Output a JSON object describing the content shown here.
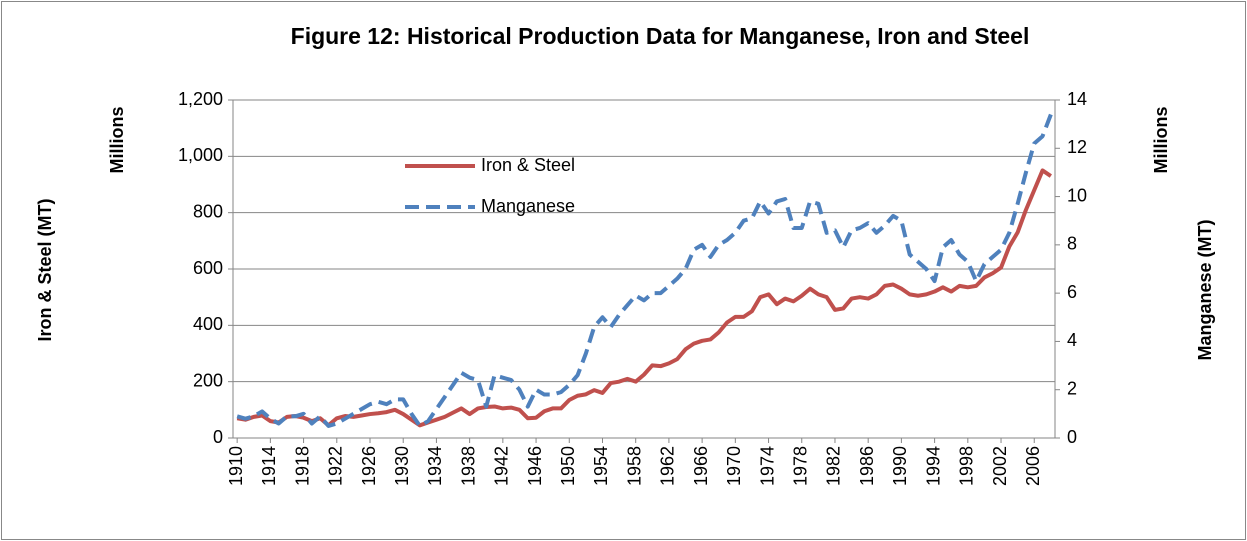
{
  "chart_data": {
    "type": "line",
    "title": "Figure 12: Historical Production Data for Manganese, Iron and Steel",
    "y_label": "Iron & Steel (MT)",
    "y_unit": "Millions",
    "y2_label": "Manganese (MT)",
    "y2_unit": "Millions",
    "x": [
      1910,
      1911,
      1912,
      1913,
      1914,
      1915,
      1916,
      1917,
      1918,
      1919,
      1920,
      1921,
      1922,
      1923,
      1924,
      1925,
      1926,
      1927,
      1928,
      1929,
      1930,
      1931,
      1932,
      1933,
      1934,
      1935,
      1936,
      1937,
      1938,
      1939,
      1940,
      1941,
      1942,
      1943,
      1944,
      1945,
      1946,
      1947,
      1948,
      1949,
      1950,
      1951,
      1952,
      1953,
      1954,
      1955,
      1956,
      1957,
      1958,
      1959,
      1960,
      1961,
      1962,
      1963,
      1964,
      1965,
      1966,
      1967,
      1968,
      1969,
      1970,
      1971,
      1972,
      1973,
      1974,
      1975,
      1976,
      1977,
      1978,
      1979,
      1980,
      1981,
      1982,
      1983,
      1984,
      1985,
      1986,
      1987,
      1988,
      1989,
      1990,
      1991,
      1992,
      1993,
      1994,
      1995,
      1996,
      1997,
      1998,
      1999,
      2000,
      2001,
      2002,
      2003,
      2004,
      2005,
      2006,
      2007,
      2008
    ],
    "xlim": [
      1909.5,
      2008.5
    ],
    "xticks": [
      1910,
      1914,
      1918,
      1922,
      1926,
      1930,
      1934,
      1938,
      1942,
      1946,
      1950,
      1954,
      1958,
      1962,
      1966,
      1970,
      1974,
      1978,
      1982,
      1986,
      1990,
      1994,
      1998,
      2002,
      2006
    ],
    "ylim": [
      0,
      1200
    ],
    "yticks": [
      0,
      200,
      400,
      600,
      800,
      {
        "value": 1000,
        "label": "1,000"
      },
      {
        "value": 1200,
        "label": "1,200"
      }
    ],
    "y2lim": [
      0,
      14
    ],
    "y2ticks": [
      0,
      2,
      4,
      6,
      8,
      10,
      12,
      14
    ],
    "grid": true,
    "legend": "upper left",
    "series": [
      {
        "name": "Iron & Steel",
        "color": "#c0504d",
        "dashed": false,
        "values": [
          70,
          65,
          75,
          80,
          60,
          55,
          75,
          78,
          72,
          60,
          70,
          45,
          70,
          78,
          75,
          80,
          85,
          88,
          92,
          100,
          85,
          65,
          45,
          55,
          65,
          75,
          90,
          105,
          85,
          105,
          110,
          112,
          105,
          108,
          100,
          70,
          72,
          95,
          105,
          105,
          135,
          150,
          155,
          170,
          160,
          195,
          200,
          210,
          200,
          225,
          258,
          255,
          265,
          280,
          315,
          335,
          345,
          350,
          375,
          410,
          430,
          430,
          450,
          500,
          510,
          475,
          495,
          485,
          505,
          530,
          510,
          500,
          455,
          460,
          495,
          500,
          495,
          510,
          540,
          545,
          530,
          510,
          505,
          510,
          520,
          535,
          520,
          540,
          535,
          540,
          570,
          585,
          605,
          680,
          730,
          810,
          880,
          950,
          930
        ]
      },
      {
        "name": "Manganese",
        "color": "#4f81bd",
        "dashed": true,
        "axis": "y2",
        "values": [
          0.9,
          0.8,
          0.9,
          1.1,
          0.8,
          0.6,
          0.9,
          0.9,
          1.0,
          0.6,
          0.9,
          0.5,
          0.6,
          0.8,
          1.0,
          1.2,
          1.4,
          1.5,
          1.4,
          1.6,
          1.6,
          1.0,
          0.5,
          0.7,
          1.2,
          1.7,
          2.2,
          2.7,
          2.5,
          2.4,
          1.3,
          2.6,
          2.5,
          2.4,
          2.0,
          1.3,
          2.0,
          1.8,
          1.8,
          1.9,
          2.2,
          2.6,
          3.5,
          4.6,
          5.0,
          4.6,
          5.1,
          5.5,
          5.9,
          5.7,
          6.0,
          6.0,
          6.3,
          6.6,
          7.0,
          7.8,
          8.0,
          7.5,
          8.0,
          8.2,
          8.5,
          9.0,
          9.1,
          9.8,
          9.3,
          9.8,
          9.9,
          8.7,
          8.7,
          9.8,
          9.7,
          8.5,
          8.6,
          7.9,
          8.6,
          8.7,
          8.9,
          8.5,
          8.8,
          9.2,
          9.0,
          7.6,
          7.3,
          7.0,
          6.5,
          7.9,
          8.2,
          7.6,
          7.3,
          6.5,
          7.2,
          7.5,
          7.8,
          8.5,
          9.7,
          11.0,
          12.2,
          12.5,
          13.4
        ]
      }
    ]
  }
}
